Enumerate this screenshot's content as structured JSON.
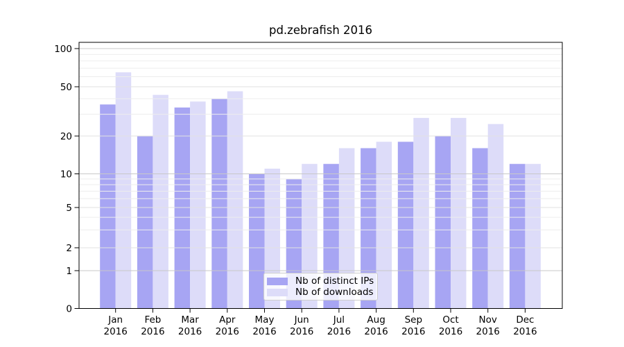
{
  "chart_data": {
    "type": "bar",
    "title": "pd.zebrafish 2016",
    "categories": [
      "Jan",
      "Feb",
      "Mar",
      "Apr",
      "May",
      "Jun",
      "Jul",
      "Aug",
      "Sep",
      "Oct",
      "Nov",
      "Dec"
    ],
    "x_tick_second_line": "2016",
    "series": [
      {
        "name": "Nb of distinct IPs",
        "color": "#a7a5f3",
        "values": [
          36,
          20,
          34,
          40,
          10,
          9,
          12,
          16,
          18,
          20,
          16,
          12
        ]
      },
      {
        "name": "Nb of downloads",
        "color": "#dddcf9",
        "values": [
          65,
          43,
          38,
          46,
          11,
          12,
          16,
          18,
          28,
          28,
          25,
          12
        ]
      }
    ],
    "yscale": "symlog (logarithmic above 1, linear from 0 to 1)",
    "y_tick_labels": [
      "100",
      "50",
      "20",
      "10",
      "5",
      "2",
      "1",
      "0"
    ],
    "y_tick_values": [
      100,
      50,
      20,
      10,
      5,
      2,
      1,
      0
    ],
    "ylim": [
      0,
      112
    ],
    "grid": "horizontal major and minor gridlines",
    "legend": {
      "position": "lower center",
      "labels": [
        "Nb of distinct IPs",
        "Nb of downloads"
      ]
    }
  },
  "colors": {
    "distinct_ips_bar": "#a7a5f3",
    "downloads_bar": "#dddcf9",
    "grid_decade": "#c8c8c8",
    "grid_labeled": "#e2e2e2",
    "grid_minor": "#ededed",
    "axis": "#000000",
    "legend_border": "#cccccc"
  }
}
